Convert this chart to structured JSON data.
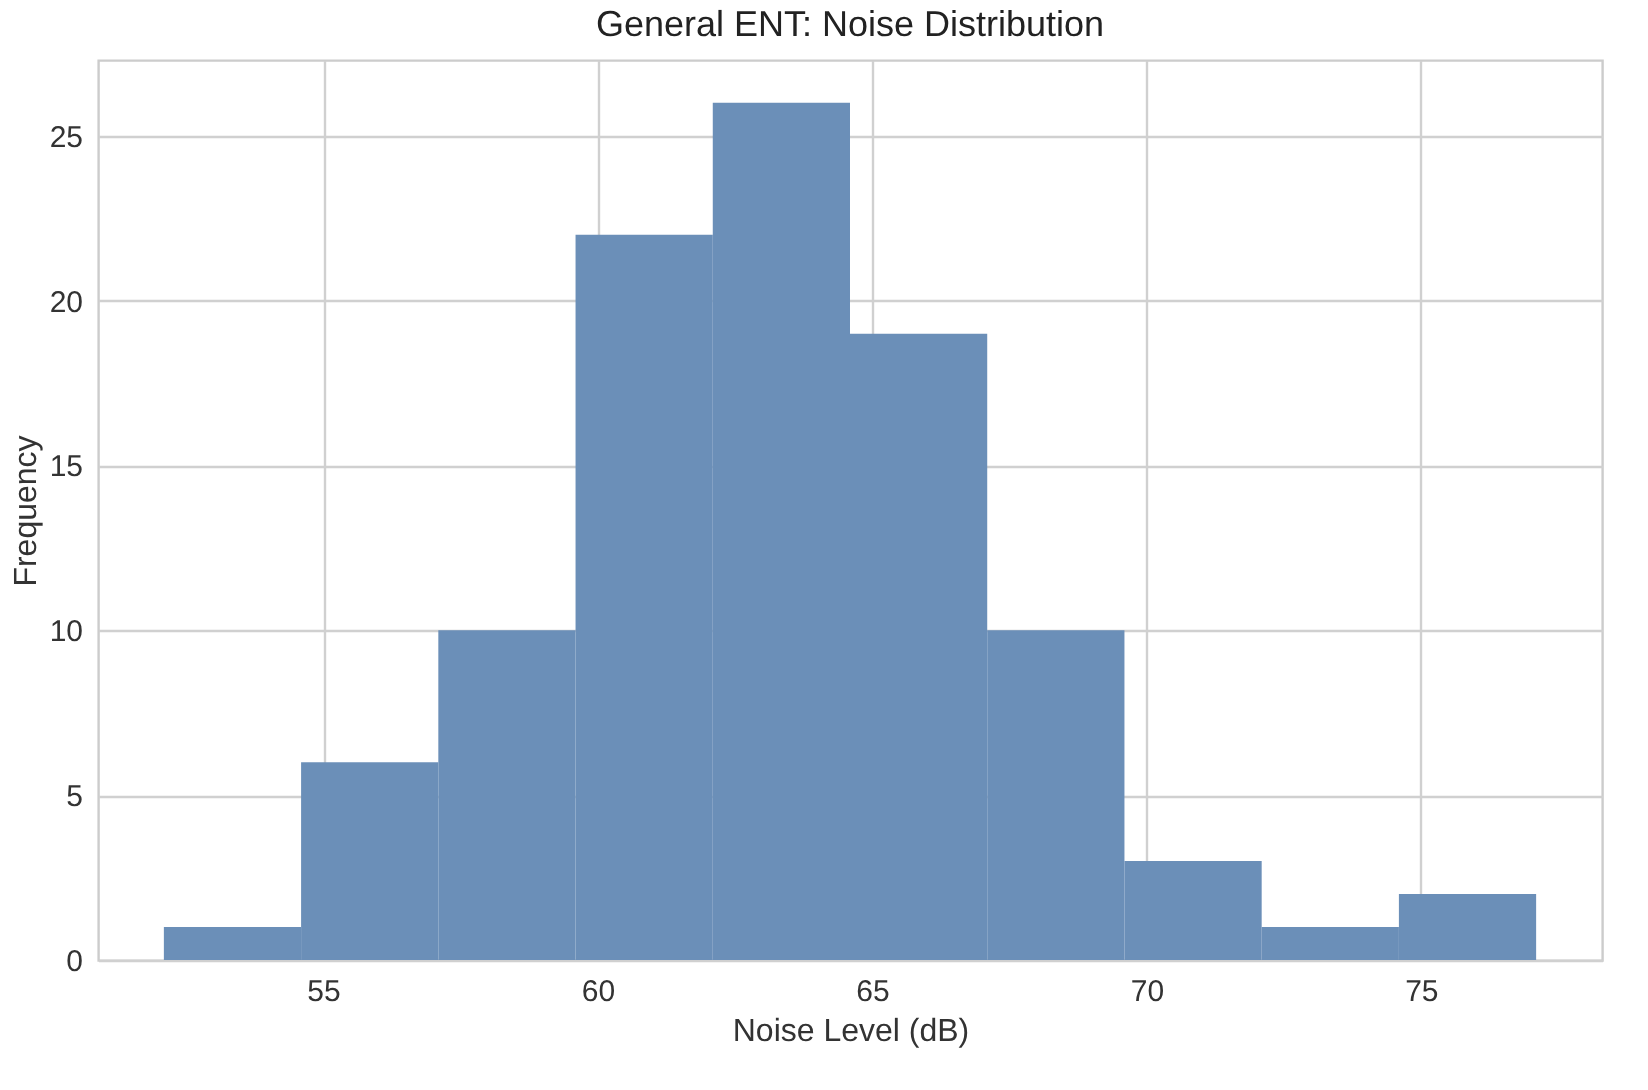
{
  "chart_data": {
    "type": "histogram",
    "title": "General ENT: Noise Distribution",
    "xlabel": "Noise Level (dB)",
    "ylabel": "Frequency",
    "bins": [
      52.1,
      54.6,
      57.1,
      59.6,
      62.1,
      64.6,
      67.1,
      69.6,
      72.1,
      74.6,
      77.1
    ],
    "values": [
      1,
      6,
      10,
      22,
      26,
      19,
      10,
      3,
      1,
      2
    ],
    "color": "#6b8fb8",
    "xlim": [
      50.9,
      78.3
    ],
    "xticks": [
      55,
      60,
      65,
      70,
      75
    ],
    "ylim": [
      0,
      27.3
    ],
    "yticks": [
      0,
      5,
      10,
      15,
      20,
      25
    ],
    "grid": true
  }
}
